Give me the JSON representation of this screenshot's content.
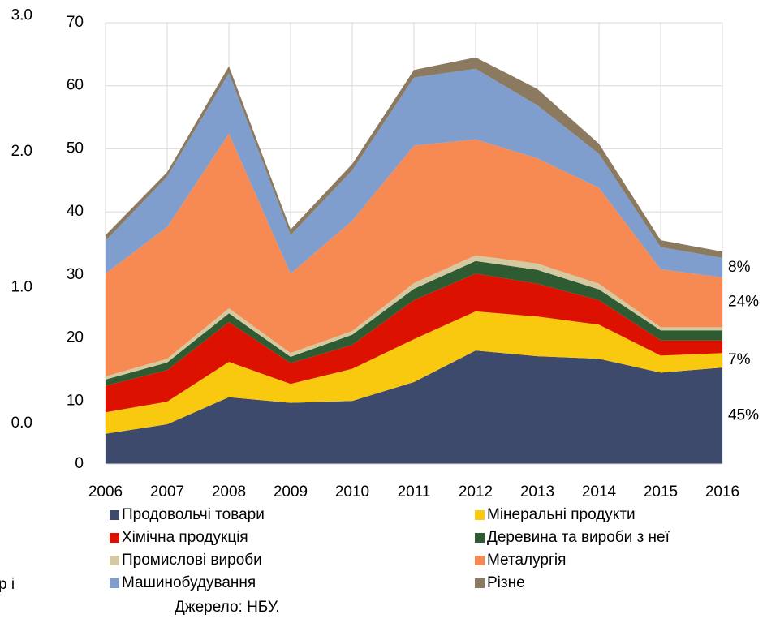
{
  "chart_data": {
    "type": "stacked_area",
    "categories": [
      "2006",
      "2007",
      "2008",
      "2009",
      "2010",
      "2011",
      "2012",
      "2013",
      "2014",
      "2015",
      "2016"
    ],
    "ylim": [
      0,
      70
    ],
    "yticks": [
      0,
      10,
      20,
      30,
      40,
      50,
      60,
      70
    ],
    "y2lim": [
      -0.3,
      2.95
    ],
    "y2ticks": [
      {
        "value": 0,
        "label": "0.0"
      },
      {
        "value": 1,
        "label": "1.0"
      },
      {
        "value": 2,
        "label": "2.0"
      },
      {
        "value": 3,
        "label": "3.0"
      }
    ],
    "grid": true,
    "series": [
      {
        "name": "Продовольчі товари",
        "color": "#3e4a6c",
        "values": [
          4.8,
          6.3,
          10.6,
          9.7,
          10.0,
          13.0,
          18.0,
          17.1,
          16.7,
          14.5,
          15.3
        ],
        "end_label": "45%",
        "end_label_color": "#1f3472"
      },
      {
        "name": "Мінеральні продукти",
        "color": "#f8c90f",
        "values": [
          3.4,
          3.6,
          5.6,
          3.0,
          5.1,
          6.8,
          6.2,
          6.3,
          5.4,
          2.7,
          2.3
        ],
        "end_label": "7%",
        "end_label_color": "#e8b400"
      },
      {
        "name": "Хімічна продукція",
        "color": "#dc1100",
        "values": [
          4.2,
          5.0,
          6.3,
          3.3,
          3.8,
          6.2,
          6.0,
          5.2,
          3.9,
          2.4,
          2.0
        ]
      },
      {
        "name": "Деревина та вироби з неї",
        "color": "#2f5b33",
        "values": [
          1.0,
          1.2,
          1.4,
          1.0,
          1.6,
          1.8,
          2.0,
          2.2,
          1.7,
          1.6,
          1.6
        ]
      },
      {
        "name": "Промислові вироби",
        "color": "#d4c9a1",
        "values": [
          0.5,
          0.6,
          0.8,
          0.6,
          0.6,
          0.9,
          0.9,
          1.0,
          0.9,
          0.5,
          0.5
        ]
      },
      {
        "name": "Металургія",
        "color": "#f68a52",
        "values": [
          16.3,
          20.9,
          27.7,
          12.6,
          17.5,
          21.8,
          18.4,
          16.7,
          15.2,
          9.2,
          7.9
        ],
        "end_label": "24%",
        "end_label_color": "#e46c0a"
      },
      {
        "name": "Машинобудування",
        "color": "#7f9ecd",
        "values": [
          5.2,
          8.0,
          9.6,
          6.1,
          8.0,
          10.8,
          11.2,
          8.4,
          5.4,
          3.5,
          3.1
        ],
        "end_label": "8%",
        "end_label_color": "#31859c"
      },
      {
        "name": "Різне",
        "color": "#8b7960",
        "values": [
          0.9,
          0.7,
          1.1,
          0.9,
          1.0,
          1.2,
          1.8,
          2.6,
          1.6,
          1.1,
          1.0
        ]
      }
    ],
    "source": "Джерело: НБУ.",
    "fragment": "р і"
  }
}
